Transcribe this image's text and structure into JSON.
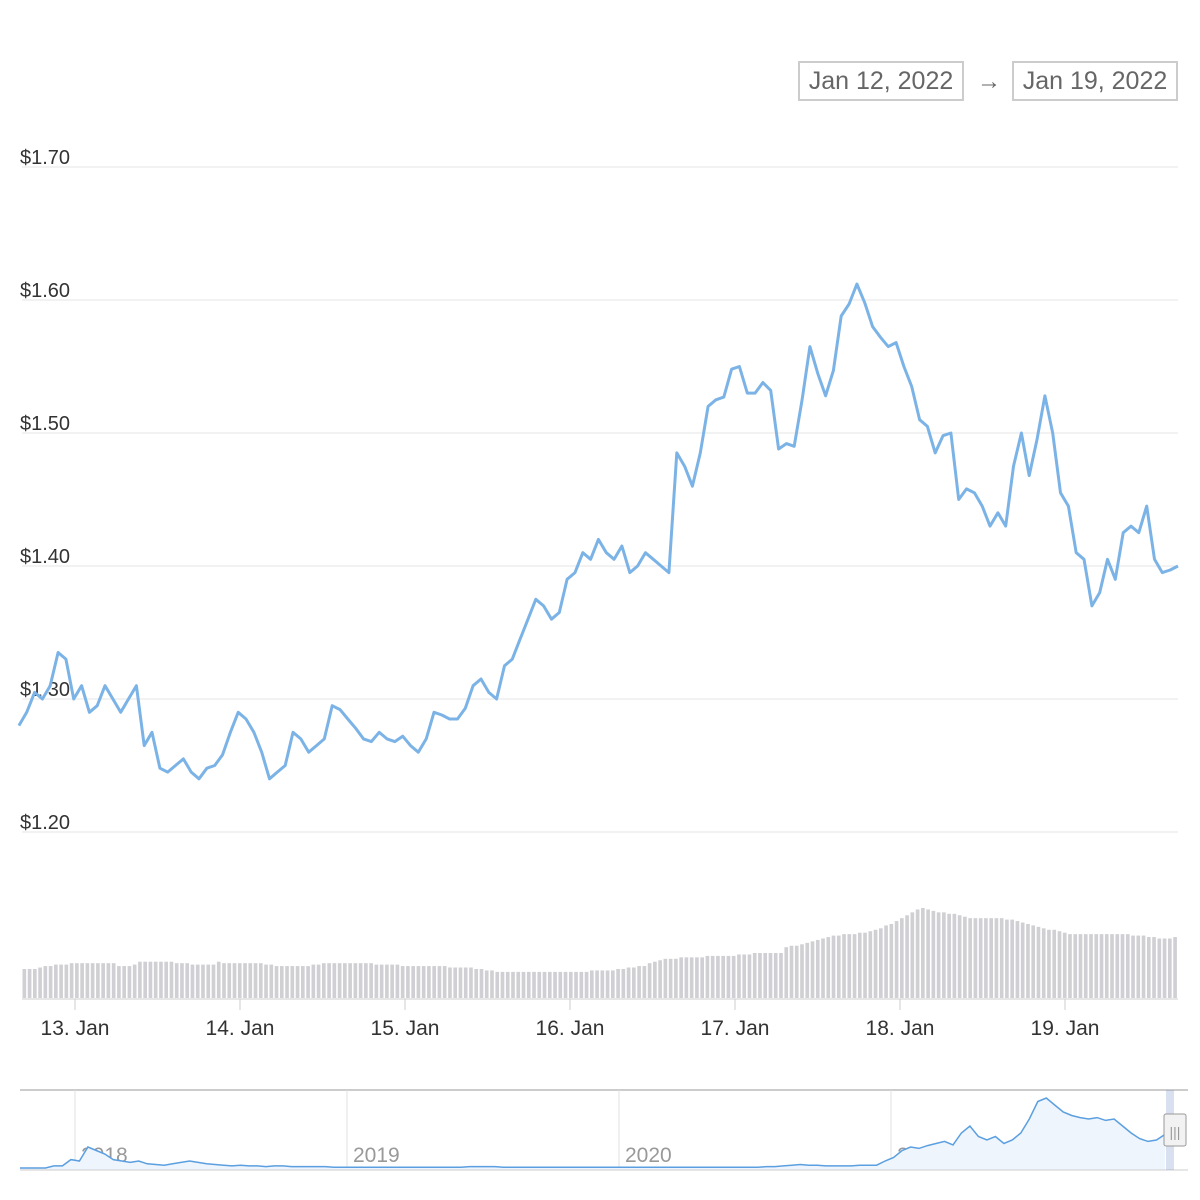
{
  "range_selector": {
    "from": "Jan 12, 2022",
    "arrow": "→",
    "to": "Jan 19, 2022"
  },
  "colors": {
    "price_line": "#7cb3e6",
    "volume_bar": "#d0d0d4",
    "grid": "#e6e6e6",
    "navigator_line": "#5b9fe0",
    "navigator_fill": "#eef5fc"
  },
  "chart_data": {
    "type": "line",
    "title": "",
    "xlabel": "",
    "ylabel": "",
    "ylim": [
      1.2,
      1.7
    ],
    "y_ticks": [
      1.2,
      1.3,
      1.4,
      1.5,
      1.6,
      1.7
    ],
    "y_tick_labels": [
      "$1.20",
      "$1.30",
      "$1.40",
      "$1.50",
      "$1.60",
      "$1.70"
    ],
    "x_ticks": [
      "13. Jan",
      "14. Jan",
      "15. Jan",
      "16. Jan",
      "17. Jan",
      "18. Jan",
      "19. Jan"
    ],
    "x_start_day": 12.66,
    "x_end_day": 19.7,
    "series": [
      {
        "values": [
          1.28,
          1.29,
          1.305,
          1.3,
          1.31,
          1.335,
          1.33,
          1.3,
          1.31,
          1.29,
          1.295,
          1.31,
          1.3,
          1.29,
          1.3,
          1.31,
          1.265,
          1.275,
          1.248,
          1.245,
          1.25,
          1.255,
          1.245,
          1.24,
          1.248,
          1.25,
          1.258,
          1.275,
          1.29,
          1.285,
          1.275,
          1.26,
          1.24,
          1.245,
          1.25,
          1.275,
          1.27,
          1.26,
          1.265,
          1.27,
          1.295,
          1.292,
          1.285,
          1.278,
          1.27,
          1.268,
          1.275,
          1.27,
          1.268,
          1.272,
          1.265,
          1.26,
          1.27,
          1.29,
          1.288,
          1.285,
          1.285,
          1.293,
          1.31,
          1.315,
          1.305,
          1.3,
          1.325,
          1.33,
          1.345,
          1.36,
          1.375,
          1.37,
          1.36,
          1.365,
          1.39,
          1.395,
          1.41,
          1.405,
          1.42,
          1.41,
          1.405,
          1.415,
          1.395,
          1.4,
          1.41,
          1.405,
          1.4,
          1.395,
          1.485,
          1.475,
          1.46,
          1.485,
          1.52,
          1.525,
          1.527,
          1.548,
          1.55,
          1.53,
          1.53,
          1.538,
          1.532,
          1.488,
          1.492,
          1.49,
          1.525,
          1.565,
          1.545,
          1.528,
          1.547,
          1.588,
          1.597,
          1.612,
          1.598,
          1.58,
          1.572,
          1.565,
          1.568,
          1.55,
          1.535,
          1.51,
          1.505,
          1.485,
          1.498,
          1.5,
          1.45,
          1.458,
          1.455,
          1.445,
          1.43,
          1.44,
          1.43,
          1.475,
          1.5,
          1.468,
          1.495,
          1.528,
          1.5,
          1.455,
          1.445,
          1.41,
          1.405,
          1.37,
          1.38,
          1.405,
          1.39,
          1.425,
          1.43,
          1.425,
          1.445,
          1.405,
          1.395,
          1.397,
          1.4
        ]
      }
    ],
    "volume": [
      20,
      20,
      20,
      21,
      22,
      22,
      23,
      23,
      23,
      24,
      24,
      24,
      24,
      24,
      24,
      24,
      24,
      24,
      22,
      22,
      22,
      23,
      25,
      25,
      25,
      25,
      25,
      25,
      25,
      24,
      24,
      24,
      23,
      23,
      23,
      23,
      23,
      25,
      24,
      24,
      24,
      24,
      24,
      24,
      24,
      24,
      23,
      23,
      22,
      22,
      22,
      22,
      22,
      22,
      22,
      23,
      23,
      24,
      24,
      24,
      24,
      24,
      24,
      24,
      24,
      24,
      24,
      23,
      23,
      23,
      23,
      23,
      22,
      22,
      22,
      22,
      22,
      22,
      22,
      22,
      22,
      21,
      21,
      21,
      21,
      21,
      20,
      20,
      19,
      19,
      18,
      18,
      18,
      18,
      18,
      18,
      18,
      18,
      18,
      18,
      18,
      18,
      18,
      18,
      18,
      18,
      18,
      18,
      19,
      19,
      19,
      19,
      19,
      20,
      20,
      21,
      21,
      22,
      22,
      24,
      25,
      26,
      27,
      27,
      27,
      28,
      28,
      28,
      28,
      28,
      29,
      29,
      29,
      29,
      29,
      29,
      30,
      30,
      30,
      31,
      31,
      31,
      31,
      31,
      31,
      35,
      36,
      36,
      37,
      38,
      39,
      40,
      41,
      42,
      43,
      43,
      44,
      44,
      44,
      45,
      45,
      46,
      47,
      48,
      50,
      51,
      53,
      55,
      57,
      59,
      61,
      62,
      61,
      60,
      59,
      59,
      58,
      58,
      57,
      56,
      55,
      55,
      55,
      55,
      55,
      55,
      55,
      54,
      54,
      53,
      52,
      51,
      50,
      49,
      48,
      47,
      47,
      46,
      45,
      44,
      44,
      44,
      44,
      44,
      44,
      44,
      44,
      44,
      44,
      44,
      44,
      43,
      43,
      43,
      42,
      42,
      41,
      41,
      41,
      42
    ]
  },
  "navigator": {
    "year_labels": [
      "2018",
      "2019",
      "2020",
      "2021"
    ],
    "values": [
      0,
      0,
      0,
      0,
      0.03,
      0.03,
      0.12,
      0.1,
      0.3,
      0.25,
      0.2,
      0.12,
      0.1,
      0.08,
      0.1,
      0.06,
      0.05,
      0.04,
      0.06,
      0.08,
      0.1,
      0.08,
      0.06,
      0.05,
      0.04,
      0.03,
      0.04,
      0.03,
      0.03,
      0.02,
      0.03,
      0.03,
      0.02,
      0.02,
      0.02,
      0.02,
      0.02,
      0.01,
      0.01,
      0.01,
      0.01,
      0.01,
      0.01,
      0.01,
      0.01,
      0.01,
      0.01,
      0.01,
      0.01,
      0.01,
      0.01,
      0.01,
      0.01,
      0.02,
      0.02,
      0.02,
      0.02,
      0.01,
      0.01,
      0.01,
      0.01,
      0.01,
      0.01,
      0.01,
      0.01,
      0.01,
      0.01,
      0.01,
      0.01,
      0.01,
      0.01,
      0.01,
      0.01,
      0.01,
      0.01,
      0.01,
      0.01,
      0.01,
      0.01,
      0.01,
      0.01,
      0.01,
      0.01,
      0.01,
      0.01,
      0.01,
      0.01,
      0.01,
      0.02,
      0.02,
      0.03,
      0.04,
      0.05,
      0.04,
      0.04,
      0.03,
      0.03,
      0.03,
      0.03,
      0.04,
      0.04,
      0.04,
      0.1,
      0.15,
      0.25,
      0.3,
      0.28,
      0.32,
      0.35,
      0.38,
      0.33,
      0.5,
      0.6,
      0.45,
      0.4,
      0.45,
      0.35,
      0.4,
      0.5,
      0.7,
      0.95,
      1.0,
      0.9,
      0.8,
      0.75,
      0.72,
      0.7,
      0.72,
      0.68,
      0.7,
      0.6,
      0.5,
      0.42,
      0.38,
      0.4,
      0.48
    ]
  },
  "labels": {
    "scroll_handle": "|||"
  }
}
